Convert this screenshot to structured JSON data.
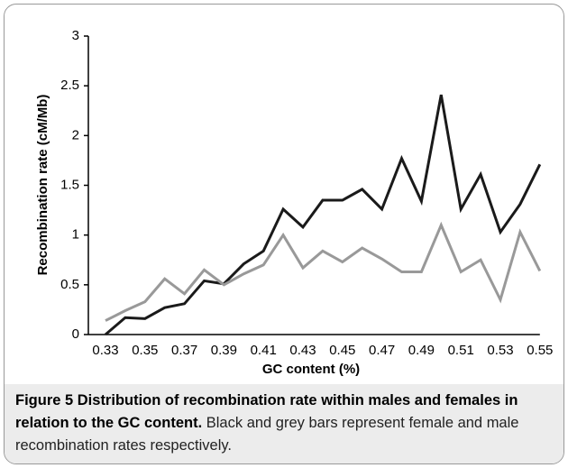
{
  "chart_data": {
    "type": "line",
    "x_label": "GC content (%)",
    "y_label": "Recombination rate (cM/Mb)",
    "categories": [
      "0.33",
      null,
      "0.35",
      null,
      "0.37",
      null,
      "0.39",
      null,
      "0.41",
      null,
      "0.43",
      null,
      "0.45",
      null,
      "0.47",
      null,
      "0.49",
      null,
      "0.51",
      null,
      "0.53",
      null,
      "0.55"
    ],
    "series": [
      {
        "color": "#1a1a1a",
        "values": [
          0,
          0.17,
          0.16,
          0.27,
          0.31,
          0.54,
          0.51,
          0.71,
          0.84,
          1.26,
          1.08,
          1.35,
          1.35,
          1.46,
          1.26,
          1.77,
          1.34,
          2.41,
          1.26,
          1.61,
          1.03,
          1.31,
          1.71
        ]
      },
      {
        "color": "#999999",
        "values": [
          0.14,
          0.24,
          0.33,
          0.56,
          0.41,
          0.65,
          0.5,
          0.61,
          0.7,
          1.0,
          0.67,
          0.84,
          0.73,
          0.87,
          0.76,
          0.63,
          0.63,
          1.1,
          0.63,
          0.75,
          0.35,
          1.03,
          0.64
        ]
      }
    ],
    "ylim": [
      0,
      3
    ],
    "yticks": [
      0,
      0.5,
      1,
      1.5,
      2,
      2.5,
      3
    ],
    "grid": false
  },
  "caption": {
    "title": "Figure 5 Distribution of recombination rate within males and females in relation to the GC content.",
    "text": "Black and grey bars represent female and male recombination rates respectively."
  }
}
